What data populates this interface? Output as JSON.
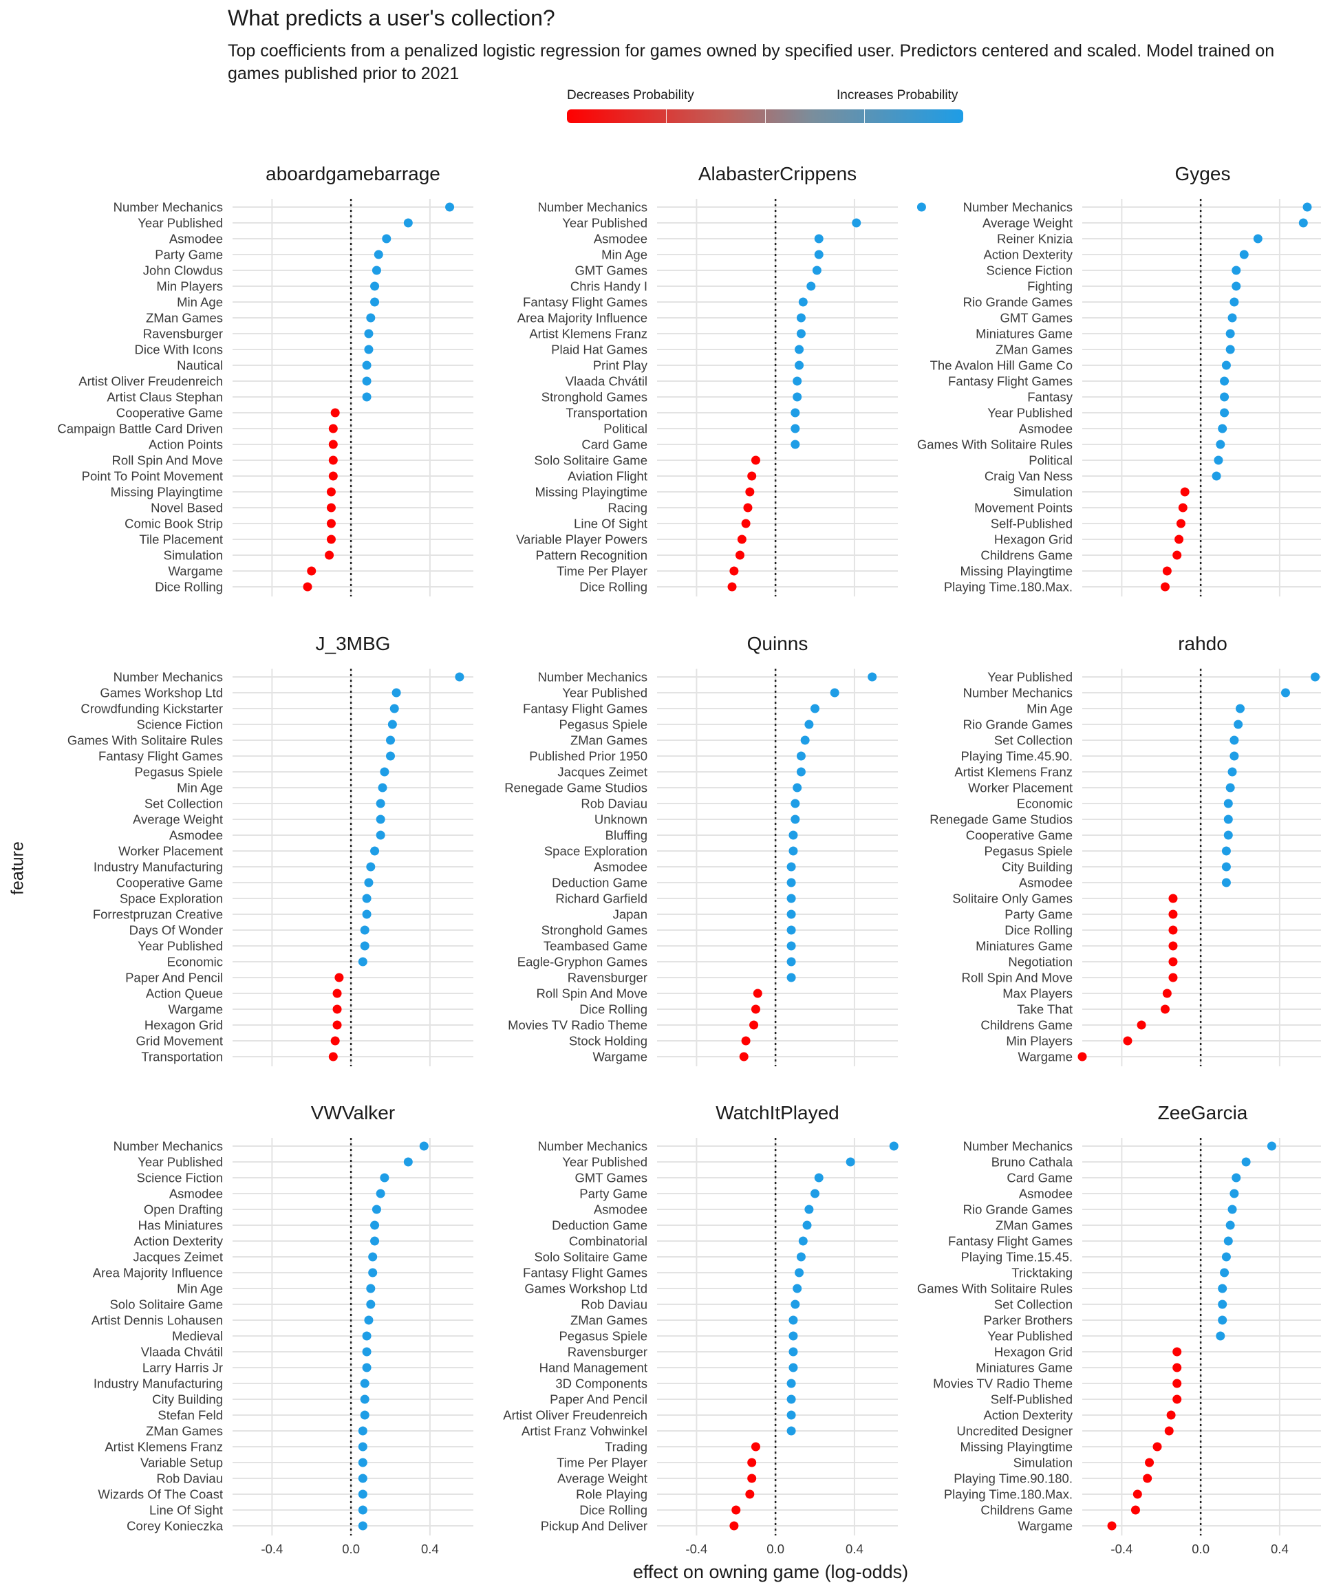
{
  "title": "What predicts a user's collection?",
  "subtitle": "Top coefficients from a penalized logistic regression for games owned by specified user. Predictors centered and scaled. Model trained on games published prior to 2021",
  "legend": {
    "low_label": "Decreases Probability",
    "high_label": "Increases Probability",
    "low_color": "#ff0000",
    "high_color": "#1e9de6"
  },
  "axes": {
    "xlabel": "effect on owning game (log-odds)",
    "ylabel": "feature",
    "xticks": [
      "-0.4",
      "0.0",
      "0.4"
    ],
    "xlim": [
      -0.6,
      0.62
    ]
  },
  "chart_data": [
    {
      "type": "scatter",
      "title": "aboardgamebarrage",
      "categories": [
        "Number Mechanics",
        "Year Published",
        "Asmodee",
        "Party Game",
        "John Clowdus",
        "Min Players",
        "Min Age",
        "ZMan Games",
        "Ravensburger",
        "Dice With Icons",
        "Nautical",
        "Artist Oliver Freudenreich",
        "Artist Claus Stephan",
        "Cooperative Game",
        "Campaign Battle Card Driven",
        "Action Points",
        "Roll Spin And Move",
        "Point To Point Movement",
        "Missing Playingtime",
        "Novel Based",
        "Comic Book Strip",
        "Tile Placement",
        "Simulation",
        "Wargame",
        "Dice Rolling"
      ],
      "values": [
        0.5,
        0.29,
        0.18,
        0.14,
        0.13,
        0.12,
        0.12,
        0.1,
        0.09,
        0.09,
        0.08,
        0.08,
        0.08,
        -0.08,
        -0.09,
        -0.09,
        -0.09,
        -0.09,
        -0.1,
        -0.1,
        -0.1,
        -0.1,
        -0.11,
        -0.2,
        -0.22
      ]
    },
    {
      "type": "scatter",
      "title": "AlabasterCrippens",
      "categories": [
        "Number Mechanics",
        "Year Published",
        "Asmodee",
        "Min Age",
        "GMT Games",
        "Chris Handy I",
        "Fantasy Flight Games",
        "Area Majority Influence",
        "Artist Klemens Franz",
        "Plaid Hat Games",
        "Print Play",
        "Vlaada Chvátil",
        "Stronghold Games",
        "Transportation",
        "Political",
        "Card Game",
        "Solo Solitaire Game",
        "Aviation Flight",
        "Missing Playingtime",
        "Racing",
        "Line Of Sight",
        "Variable Player Powers",
        "Pattern Recognition",
        "Time Per Player",
        "Dice Rolling"
      ],
      "values": [
        0.74,
        0.41,
        0.22,
        0.22,
        0.21,
        0.18,
        0.14,
        0.13,
        0.13,
        0.12,
        0.12,
        0.11,
        0.11,
        0.1,
        0.1,
        0.1,
        -0.1,
        -0.12,
        -0.13,
        -0.14,
        -0.15,
        -0.17,
        -0.18,
        -0.21,
        -0.22
      ]
    },
    {
      "type": "scatter",
      "title": "Gyges",
      "categories": [
        "Number Mechanics",
        "Average Weight",
        "Reiner Knizia",
        "Action Dexterity",
        "Science Fiction",
        "Fighting",
        "Rio Grande Games",
        "GMT Games",
        "Miniatures Game",
        "ZMan Games",
        "The Avalon Hill Game Co",
        "Fantasy Flight Games",
        "Fantasy",
        "Year Published",
        "Asmodee",
        "Games With Solitaire Rules",
        "Political",
        "Craig Van Ness",
        "Simulation",
        "Movement Points",
        "Self-Published",
        "Hexagon Grid",
        "Childrens Game",
        "Missing Playingtime",
        "Playing Time.180.Max."
      ],
      "values": [
        0.54,
        0.52,
        0.29,
        0.22,
        0.18,
        0.18,
        0.17,
        0.16,
        0.15,
        0.15,
        0.13,
        0.12,
        0.12,
        0.12,
        0.11,
        0.1,
        0.09,
        0.08,
        -0.08,
        -0.09,
        -0.1,
        -0.11,
        -0.12,
        -0.17,
        -0.18
      ]
    },
    {
      "type": "scatter",
      "title": "J_3MBG",
      "categories": [
        "Number Mechanics",
        "Games Workshop Ltd",
        "Crowdfunding Kickstarter",
        "Science Fiction",
        "Games With Solitaire Rules",
        "Fantasy Flight Games",
        "Pegasus Spiele",
        "Min Age",
        "Set Collection",
        "Average Weight",
        "Asmodee",
        "Worker Placement",
        "Industry Manufacturing",
        "Cooperative Game",
        "Space Exploration",
        "Forrestpruzan Creative",
        "Days Of Wonder",
        "Year Published",
        "Economic",
        "Paper And Pencil",
        "Action Queue",
        "Wargame",
        "Hexagon Grid",
        "Grid Movement",
        "Transportation"
      ],
      "values": [
        0.55,
        0.23,
        0.22,
        0.21,
        0.2,
        0.2,
        0.17,
        0.16,
        0.15,
        0.15,
        0.15,
        0.12,
        0.1,
        0.09,
        0.08,
        0.08,
        0.07,
        0.07,
        0.06,
        -0.06,
        -0.07,
        -0.07,
        -0.07,
        -0.08,
        -0.09
      ]
    },
    {
      "type": "scatter",
      "title": "Quinns",
      "categories": [
        "Number Mechanics",
        "Year Published",
        "Fantasy Flight Games",
        "Pegasus Spiele",
        "ZMan Games",
        "Published Prior 1950",
        "Jacques Zeimet",
        "Renegade Game Studios",
        "Rob Daviau",
        "Unknown",
        "Bluffing",
        "Space Exploration",
        "Asmodee",
        "Deduction Game",
        "Richard Garfield",
        "Japan",
        "Stronghold Games",
        "Teambased Game",
        "Eagle-Gryphon Games",
        "Ravensburger",
        "Roll Spin And Move",
        "Dice Rolling",
        "Movies TV Radio Theme",
        "Stock Holding",
        "Wargame"
      ],
      "values": [
        0.49,
        0.3,
        0.2,
        0.17,
        0.15,
        0.13,
        0.13,
        0.11,
        0.1,
        0.1,
        0.09,
        0.09,
        0.08,
        0.08,
        0.08,
        0.08,
        0.08,
        0.08,
        0.08,
        0.08,
        -0.09,
        -0.1,
        -0.11,
        -0.15,
        -0.16
      ]
    },
    {
      "type": "scatter",
      "title": "rahdo",
      "categories": [
        "Year Published",
        "Number Mechanics",
        "Min Age",
        "Rio Grande Games",
        "Set Collection",
        "Playing Time.45.90.",
        "Artist Klemens Franz",
        "Worker Placement",
        "Economic",
        "Renegade Game Studios",
        "Cooperative Game",
        "Pegasus Spiele",
        "City Building",
        "Asmodee",
        "Solitaire Only Games",
        "Party Game",
        "Dice Rolling",
        "Miniatures Game",
        "Negotiation",
        "Roll Spin And Move",
        "Max Players",
        "Take That",
        "Childrens Game",
        "Min Players",
        "Wargame"
      ],
      "values": [
        0.58,
        0.43,
        0.2,
        0.19,
        0.17,
        0.17,
        0.16,
        0.15,
        0.14,
        0.14,
        0.14,
        0.13,
        0.13,
        0.13,
        -0.14,
        -0.14,
        -0.14,
        -0.14,
        -0.14,
        -0.14,
        -0.17,
        -0.18,
        -0.3,
        -0.37,
        -0.6
      ]
    },
    {
      "type": "scatter",
      "title": "VWValker",
      "categories": [
        "Number Mechanics",
        "Year Published",
        "Science Fiction",
        "Asmodee",
        "Open Drafting",
        "Has Miniatures",
        "Action Dexterity",
        "Jacques Zeimet",
        "Area Majority Influence",
        "Min Age",
        "Solo Solitaire Game",
        "Artist Dennis Lohausen",
        "Medieval",
        "Vlaada Chvátil",
        "Larry Harris Jr",
        "Industry Manufacturing",
        "City Building",
        "Stefan Feld",
        "ZMan Games",
        "Artist Klemens Franz",
        "Variable Setup",
        "Rob Daviau",
        "Wizards Of The Coast",
        "Line Of Sight",
        "Corey Konieczka"
      ],
      "values": [
        0.37,
        0.29,
        0.17,
        0.15,
        0.13,
        0.12,
        0.12,
        0.11,
        0.11,
        0.1,
        0.1,
        0.09,
        0.08,
        0.08,
        0.08,
        0.07,
        0.07,
        0.07,
        0.06,
        0.06,
        0.06,
        0.06,
        0.06,
        0.06,
        0.06
      ]
    },
    {
      "type": "scatter",
      "title": "WatchItPlayed",
      "categories": [
        "Number Mechanics",
        "Year Published",
        "GMT Games",
        "Party Game",
        "Asmodee",
        "Deduction Game",
        "Combinatorial",
        "Solo Solitaire Game",
        "Fantasy Flight Games",
        "Games Workshop Ltd",
        "Rob Daviau",
        "ZMan Games",
        "Pegasus Spiele",
        "Ravensburger",
        "Hand Management",
        "3D Components",
        "Paper And Pencil",
        "Artist Oliver Freudenreich",
        "Artist Franz Vohwinkel",
        "Trading",
        "Time Per Player",
        "Average Weight",
        "Role Playing",
        "Dice Rolling",
        "Pickup And Deliver"
      ],
      "values": [
        0.6,
        0.38,
        0.22,
        0.2,
        0.17,
        0.16,
        0.14,
        0.13,
        0.12,
        0.11,
        0.1,
        0.09,
        0.09,
        0.09,
        0.09,
        0.08,
        0.08,
        0.08,
        0.08,
        -0.1,
        -0.12,
        -0.12,
        -0.13,
        -0.2,
        -0.21
      ]
    },
    {
      "type": "scatter",
      "title": "ZeeGarcia",
      "categories": [
        "Number Mechanics",
        "Bruno Cathala",
        "Card Game",
        "Asmodee",
        "Rio Grande Games",
        "ZMan Games",
        "Fantasy Flight Games",
        "Playing Time.15.45.",
        "Tricktaking",
        "Games With Solitaire Rules",
        "Set Collection",
        "Parker Brothers",
        "Year Published",
        "Hexagon Grid",
        "Miniatures Game",
        "Movies TV Radio Theme",
        "Self-Published",
        "Action Dexterity",
        "Uncredited Designer",
        "Missing Playingtime",
        "Simulation",
        "Playing Time.90.180.",
        "Playing Time.180.Max.",
        "Childrens Game",
        "Wargame"
      ],
      "values": [
        0.36,
        0.23,
        0.18,
        0.17,
        0.16,
        0.15,
        0.14,
        0.13,
        0.12,
        0.11,
        0.11,
        0.11,
        0.1,
        -0.12,
        -0.12,
        -0.12,
        -0.12,
        -0.15,
        -0.16,
        -0.22,
        -0.26,
        -0.27,
        -0.32,
        -0.33,
        -0.45
      ]
    }
  ]
}
